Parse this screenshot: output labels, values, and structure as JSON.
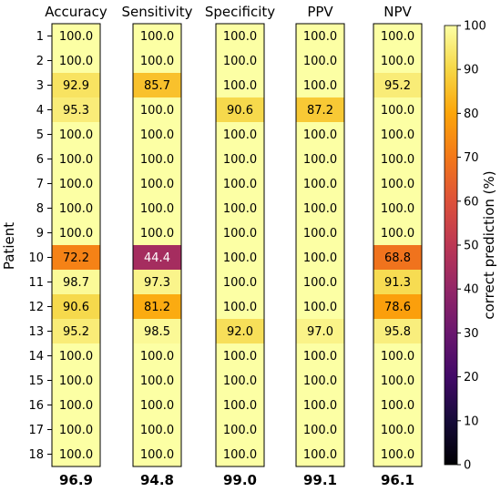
{
  "chart_data": {
    "type": "heatmap",
    "columns": [
      "Accuracy",
      "Sensitivity",
      "Specificity",
      "PPV",
      "NPV"
    ],
    "rows": [
      "1",
      "2",
      "3",
      "4",
      "5",
      "6",
      "7",
      "8",
      "9",
      "10",
      "11",
      "12",
      "13",
      "14",
      "15",
      "16",
      "17",
      "18"
    ],
    "values": [
      [
        100.0,
        100.0,
        100.0,
        100.0,
        100.0
      ],
      [
        100.0,
        100.0,
        100.0,
        100.0,
        100.0
      ],
      [
        92.9,
        85.7,
        100.0,
        100.0,
        95.2
      ],
      [
        95.3,
        100.0,
        90.6,
        87.2,
        100.0
      ],
      [
        100.0,
        100.0,
        100.0,
        100.0,
        100.0
      ],
      [
        100.0,
        100.0,
        100.0,
        100.0,
        100.0
      ],
      [
        100.0,
        100.0,
        100.0,
        100.0,
        100.0
      ],
      [
        100.0,
        100.0,
        100.0,
        100.0,
        100.0
      ],
      [
        100.0,
        100.0,
        100.0,
        100.0,
        100.0
      ],
      [
        72.2,
        44.4,
        100.0,
        100.0,
        68.8
      ],
      [
        98.7,
        97.3,
        100.0,
        100.0,
        91.3
      ],
      [
        90.6,
        81.2,
        100.0,
        100.0,
        78.6
      ],
      [
        95.2,
        98.5,
        92.0,
        97.0,
        95.8
      ],
      [
        100.0,
        100.0,
        100.0,
        100.0,
        100.0
      ],
      [
        100.0,
        100.0,
        100.0,
        100.0,
        100.0
      ],
      [
        100.0,
        100.0,
        100.0,
        100.0,
        100.0
      ],
      [
        100.0,
        100.0,
        100.0,
        100.0,
        100.0
      ],
      [
        100.0,
        100.0,
        100.0,
        100.0,
        100.0
      ]
    ],
    "column_summary": [
      "96.9",
      "94.8",
      "99.0",
      "99.1",
      "96.1"
    ],
    "ylabel": "Patient",
    "colorbar": {
      "label": "correct prediction (%)",
      "range": [
        0,
        100
      ],
      "ticks": [
        0,
        10,
        20,
        30,
        40,
        50,
        60,
        70,
        80,
        90,
        100
      ],
      "colormap": "inferno-like"
    }
  }
}
